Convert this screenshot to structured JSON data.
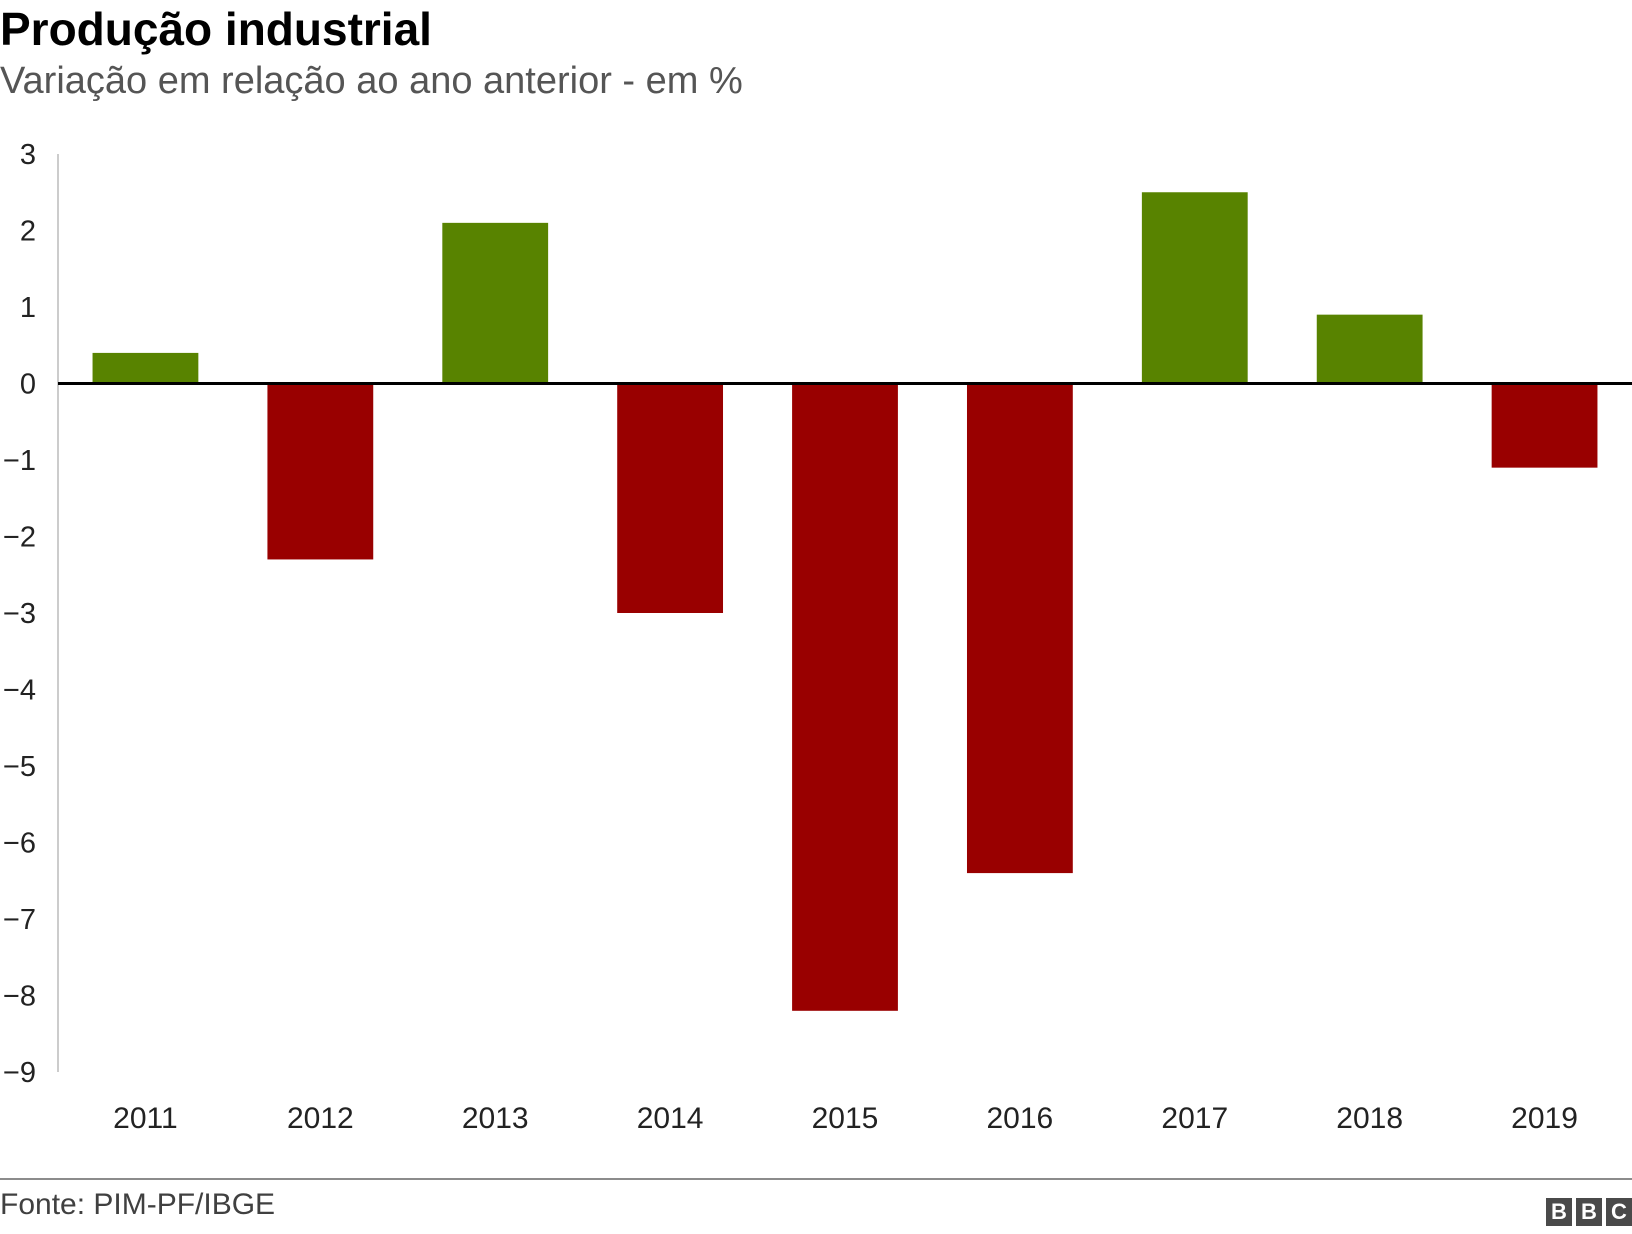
{
  "chart_data": {
    "type": "bar",
    "title": "Produção industrial",
    "subtitle": "Variação em relação ao ano anterior - em %",
    "categories": [
      "2011",
      "2012",
      "2013",
      "2014",
      "2015",
      "2016",
      "2017",
      "2018",
      "2019"
    ],
    "values": [
      0.4,
      -2.3,
      2.1,
      -3.0,
      -8.2,
      -6.4,
      2.5,
      0.9,
      -1.1
    ],
    "ylim": [
      -9,
      3
    ],
    "yticks": [
      3,
      2,
      1,
      0,
      -1,
      -2,
      -3,
      -4,
      -5,
      -6,
      -7,
      -8,
      -9
    ],
    "ytick_labels": [
      "3",
      "2",
      "1",
      "0",
      "−1",
      "−2",
      "−3",
      "−4",
      "−5",
      "−6",
      "−7",
      "−8",
      "−9"
    ],
    "xlabel": "",
    "ylabel": "",
    "grid": false,
    "colors": {
      "positive": "#588300",
      "negative": "#990000",
      "zero_line": "#000000",
      "axis": "#cccccc",
      "tick_text": "#222222"
    }
  },
  "footer": {
    "source": "Fonte: PIM-PF/IBGE",
    "logo_letters": [
      "B",
      "B",
      "C"
    ]
  }
}
